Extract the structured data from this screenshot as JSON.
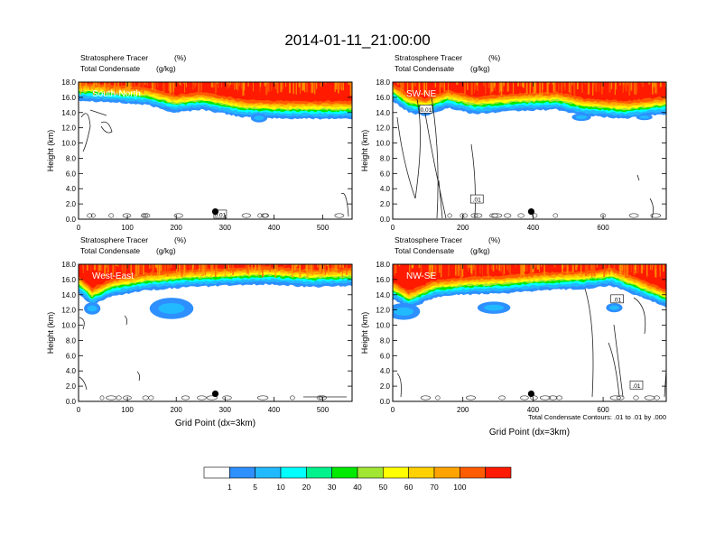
{
  "figure": {
    "title": "2014-01-11_21:00:00",
    "footnote": "Total Condensate Contours: .01 to .01 by .000"
  },
  "colorbar": {
    "colors": [
      "#ffffff",
      "#2e8fff",
      "#22baff",
      "#00ffff",
      "#00f28c",
      "#00e900",
      "#a0e632",
      "#ffff00",
      "#ffd100",
      "#ffa300",
      "#ff5b00",
      "#ff1a00"
    ],
    "labels": [
      "1",
      "5",
      "10",
      "20",
      "30",
      "40",
      "50",
      "60",
      "70",
      "100"
    ]
  },
  "chart_data": [
    {
      "type": "heatmap",
      "panel": "South-North",
      "label": "South-North",
      "subtitle_line1_left": "Stratosphere Tracer",
      "subtitle_line1_right": "(%)",
      "subtitle_line2_left": "Total Condensate",
      "subtitle_line2_right": "(g/kg)",
      "ylabel": "Height (km)",
      "xlabel": "",
      "xlim": [
        0,
        560
      ],
      "ylim": [
        0,
        18
      ],
      "xticks": [
        0,
        100,
        200,
        300,
        400,
        500
      ],
      "yticks": [
        "0.0",
        "2.0",
        "4.0",
        "6.0",
        "8.0",
        "10.0",
        "12.0",
        "14.0",
        "16.0",
        "18.0"
      ],
      "marker_x": 280,
      "marker_z": 1.0,
      "contour_labels": [
        {
          "text": "0.01",
          "x": 290,
          "z": 0.6
        }
      ]
    },
    {
      "type": "heatmap",
      "panel": "SW-NE",
      "label": "SW-NE",
      "subtitle_line1_left": "Stratosphere Tracer",
      "subtitle_line1_right": "(%)",
      "subtitle_line2_left": "Total Condensate",
      "subtitle_line2_right": "(g/kg)",
      "ylabel": "Height (km)",
      "xlabel": "",
      "xlim": [
        0,
        780
      ],
      "ylim": [
        0,
        18
      ],
      "xticks": [
        0,
        200,
        400,
        600
      ],
      "yticks": [
        "0.0",
        "2.0",
        "4.0",
        "6.0",
        "8.0",
        "10.0",
        "12.0",
        "14.0",
        "16.0",
        "18.0"
      ],
      "marker_x": 395,
      "marker_z": 1.0,
      "contour_labels": [
        {
          "text": "0.01",
          "x": 95,
          "z": 14.4
        },
        {
          "text": ".01",
          "x": 240,
          "z": 2.6
        }
      ]
    },
    {
      "type": "heatmap",
      "panel": "West-East",
      "label": "West-East",
      "subtitle_line1_left": "Stratosphere Tracer",
      "subtitle_line1_right": "(%)",
      "subtitle_line2_left": "Total Condensate",
      "subtitle_line2_right": "(g/kg)",
      "ylabel": "Height (km)",
      "xlabel": "Grid Point (dx=3km)",
      "xlim": [
        0,
        560
      ],
      "ylim": [
        0,
        18
      ],
      "xticks": [
        0,
        100,
        200,
        300,
        400,
        500
      ],
      "yticks": [
        "0.0",
        "2.0",
        "4.0",
        "6.0",
        "8.0",
        "10.0",
        "12.0",
        "14.0",
        "16.0",
        "18.0"
      ],
      "marker_x": 280,
      "marker_z": 1.0,
      "contour_labels": []
    },
    {
      "type": "heatmap",
      "panel": "NW-SE",
      "label": "NW-SE",
      "subtitle_line1_left": "Stratosphere Tracer",
      "subtitle_line1_right": "(%)",
      "subtitle_line2_left": "Total Condensate",
      "subtitle_line2_right": "(g/kg)",
      "ylabel": "Height (km)",
      "xlabel": "Grid Point (dx=3km)",
      "xlim": [
        0,
        780
      ],
      "ylim": [
        0,
        18
      ],
      "xticks": [
        0,
        200,
        400,
        600
      ],
      "yticks": [
        "0.0",
        "2.0",
        "4.0",
        "6.0",
        "8.0",
        "10.0",
        "12.0",
        "14.0",
        "16.0",
        "18.0"
      ],
      "marker_x": 395,
      "marker_z": 1.0,
      "contour_labels": [
        {
          "text": ".01",
          "x": 640,
          "z": 13.4
        },
        {
          "text": ".01",
          "x": 695,
          "z": 2.1
        }
      ]
    }
  ]
}
